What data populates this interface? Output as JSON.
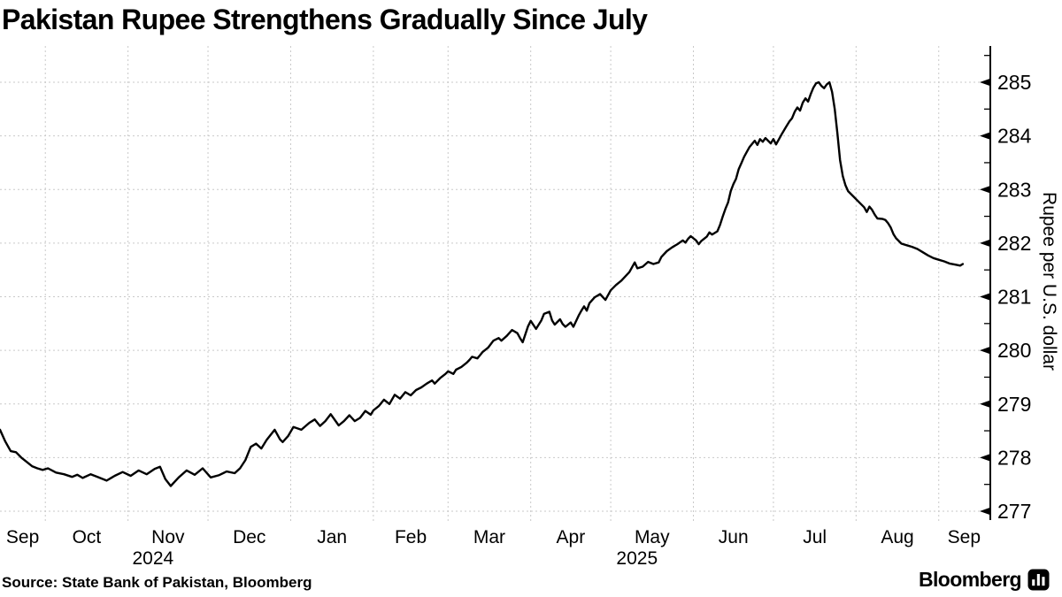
{
  "header": {
    "title": "Pakistan Rupee Strengthens Gradually Since July"
  },
  "footer": {
    "source": "Source: State Bank of Pakistan, Bloomberg",
    "brand": "Bloomberg",
    "brand_icon": "bloomberg-terminal-icon"
  },
  "colors": {
    "line": "#000000",
    "grid": "#c9c9c9",
    "background": "#ffffff",
    "text": "#000000"
  },
  "chart_data": {
    "type": "line",
    "title": "Pakistan Rupee Strengthens Gradually Since July",
    "xlabel": "",
    "ylabel": "Rupee per U.S. dollar",
    "y_ticks": [
      277,
      278,
      279,
      280,
      281,
      282,
      283,
      284,
      285
    ],
    "y_minor_step": 0.5,
    "ylim": [
      276.84,
      285.68
    ],
    "grid": "dashed",
    "legend": "none",
    "x_domain": [
      "2024-09-14",
      "2025-09-20"
    ],
    "month_start_gridlines": [
      "2024-10-01",
      "2024-11-01",
      "2024-12-01",
      "2025-01-01",
      "2025-02-01",
      "2025-03-01",
      "2025-04-01",
      "2025-05-01",
      "2025-06-01",
      "2025-07-01",
      "2025-08-01",
      "2025-09-01"
    ],
    "month_labels": [
      "Sep",
      "Oct",
      "Nov",
      "Dec",
      "Jan",
      "Feb",
      "Mar",
      "Apr",
      "May",
      "Jun",
      "Jul",
      "Aug",
      "Sep"
    ],
    "year_labels": [
      {
        "text": "2024",
        "month_index": 2
      },
      {
        "text": "2025",
        "month_index": 8
      }
    ],
    "points": [
      [
        "2024-09-14",
        278.52
      ],
      [
        "2024-09-16",
        278.3
      ],
      [
        "2024-09-18",
        278.12
      ],
      [
        "2024-09-20",
        278.1
      ],
      [
        "2024-09-22",
        278.0
      ],
      [
        "2024-09-24",
        277.92
      ],
      [
        "2024-09-26",
        277.84
      ],
      [
        "2024-09-28",
        277.8
      ],
      [
        "2024-09-30",
        277.77
      ],
      [
        "2024-10-02",
        277.8
      ],
      [
        "2024-10-05",
        277.72
      ],
      [
        "2024-10-08",
        277.69
      ],
      [
        "2024-10-11",
        277.64
      ],
      [
        "2024-10-13",
        277.68
      ],
      [
        "2024-10-15",
        277.62
      ],
      [
        "2024-10-18",
        277.69
      ],
      [
        "2024-10-21",
        277.63
      ],
      [
        "2024-10-24",
        277.57
      ],
      [
        "2024-10-27",
        277.66
      ],
      [
        "2024-10-30",
        277.73
      ],
      [
        "2024-11-02",
        277.66
      ],
      [
        "2024-11-05",
        277.76
      ],
      [
        "2024-11-08",
        277.69
      ],
      [
        "2024-11-11",
        277.79
      ],
      [
        "2024-11-13",
        277.83
      ],
      [
        "2024-11-15",
        277.6
      ],
      [
        "2024-11-17",
        277.47
      ],
      [
        "2024-11-20",
        277.63
      ],
      [
        "2024-11-23",
        277.76
      ],
      [
        "2024-11-26",
        277.68
      ],
      [
        "2024-11-29",
        277.8
      ],
      [
        "2024-12-02",
        277.63
      ],
      [
        "2024-12-05",
        277.67
      ],
      [
        "2024-12-08",
        277.74
      ],
      [
        "2024-12-11",
        277.71
      ],
      [
        "2024-12-13",
        277.8
      ],
      [
        "2024-12-15",
        277.95
      ],
      [
        "2024-12-17",
        278.2
      ],
      [
        "2024-12-19",
        278.26
      ],
      [
        "2024-12-21",
        278.17
      ],
      [
        "2024-12-23",
        278.33
      ],
      [
        "2024-12-26",
        278.52
      ],
      [
        "2024-12-28",
        278.34
      ],
      [
        "2024-12-29",
        278.29
      ],
      [
        "2024-12-31",
        278.4
      ],
      [
        "2025-01-02",
        278.57
      ],
      [
        "2025-01-05",
        278.52
      ],
      [
        "2025-01-08",
        278.65
      ],
      [
        "2025-01-10",
        278.71
      ],
      [
        "2025-01-12",
        278.59
      ],
      [
        "2025-01-14",
        278.68
      ],
      [
        "2025-01-16",
        278.81
      ],
      [
        "2025-01-19",
        278.6
      ],
      [
        "2025-01-21",
        278.68
      ],
      [
        "2025-01-23",
        278.79
      ],
      [
        "2025-01-25",
        278.68
      ],
      [
        "2025-01-27",
        278.74
      ],
      [
        "2025-01-29",
        278.87
      ],
      [
        "2025-01-31",
        278.8
      ],
      [
        "2025-02-01",
        278.88
      ],
      [
        "2025-02-03",
        278.96
      ],
      [
        "2025-02-05",
        279.08
      ],
      [
        "2025-02-07",
        279.0
      ],
      [
        "2025-02-09",
        279.17
      ],
      [
        "2025-02-11",
        279.1
      ],
      [
        "2025-02-13",
        279.22
      ],
      [
        "2025-02-15",
        279.16
      ],
      [
        "2025-02-17",
        279.26
      ],
      [
        "2025-02-19",
        279.31
      ],
      [
        "2025-02-21",
        279.38
      ],
      [
        "2025-02-23",
        279.44
      ],
      [
        "2025-02-24",
        279.38
      ],
      [
        "2025-02-26",
        279.48
      ],
      [
        "2025-02-28",
        279.56
      ],
      [
        "2025-03-01",
        279.61
      ],
      [
        "2025-03-03",
        279.56
      ],
      [
        "2025-03-04",
        279.64
      ],
      [
        "2025-03-06",
        279.69
      ],
      [
        "2025-03-08",
        279.77
      ],
      [
        "2025-03-09",
        279.82
      ],
      [
        "2025-03-10",
        279.88
      ],
      [
        "2025-03-12",
        279.85
      ],
      [
        "2025-03-13",
        279.91
      ],
      [
        "2025-03-14",
        279.97
      ],
      [
        "2025-03-16",
        280.05
      ],
      [
        "2025-03-18",
        280.18
      ],
      [
        "2025-03-20",
        280.23
      ],
      [
        "2025-03-21",
        280.18
      ],
      [
        "2025-03-23",
        280.27
      ],
      [
        "2025-03-25",
        280.38
      ],
      [
        "2025-03-27",
        280.32
      ],
      [
        "2025-03-28",
        280.23
      ],
      [
        "2025-03-29",
        280.15
      ],
      [
        "2025-03-31",
        280.45
      ],
      [
        "2025-04-01",
        280.55
      ],
      [
        "2025-04-03",
        280.4
      ],
      [
        "2025-04-05",
        280.56
      ],
      [
        "2025-04-06",
        280.68
      ],
      [
        "2025-04-08",
        280.72
      ],
      [
        "2025-04-09",
        280.56
      ],
      [
        "2025-04-10",
        280.48
      ],
      [
        "2025-04-12",
        280.58
      ],
      [
        "2025-04-13",
        280.49
      ],
      [
        "2025-04-14",
        280.44
      ],
      [
        "2025-04-16",
        280.52
      ],
      [
        "2025-04-17",
        280.44
      ],
      [
        "2025-04-19",
        280.65
      ],
      [
        "2025-04-20",
        280.74
      ],
      [
        "2025-04-21",
        280.82
      ],
      [
        "2025-04-22",
        280.74
      ],
      [
        "2025-04-23",
        280.88
      ],
      [
        "2025-04-25",
        280.99
      ],
      [
        "2025-04-27",
        281.05
      ],
      [
        "2025-04-29",
        280.94
      ],
      [
        "2025-05-01",
        281.12
      ],
      [
        "2025-05-03",
        281.22
      ],
      [
        "2025-05-05",
        281.3
      ],
      [
        "2025-05-08",
        281.46
      ],
      [
        "2025-05-10",
        281.64
      ],
      [
        "2025-05-11",
        281.53
      ],
      [
        "2025-05-13",
        281.56
      ],
      [
        "2025-05-15",
        281.65
      ],
      [
        "2025-05-17",
        281.61
      ],
      [
        "2025-05-19",
        281.64
      ],
      [
        "2025-05-20",
        281.74
      ],
      [
        "2025-05-22",
        281.85
      ],
      [
        "2025-05-24",
        281.92
      ],
      [
        "2025-05-26",
        281.98
      ],
      [
        "2025-05-28",
        282.05
      ],
      [
        "2025-05-29",
        282.01
      ],
      [
        "2025-05-30",
        282.08
      ],
      [
        "2025-05-31",
        282.13
      ],
      [
        "2025-06-02",
        282.05
      ],
      [
        "2025-06-03",
        281.98
      ],
      [
        "2025-06-04",
        282.04
      ],
      [
        "2025-06-06",
        282.12
      ],
      [
        "2025-06-07",
        282.2
      ],
      [
        "2025-06-08",
        282.16
      ],
      [
        "2025-06-09",
        282.19
      ],
      [
        "2025-06-10",
        282.22
      ],
      [
        "2025-06-11",
        282.34
      ],
      [
        "2025-06-12",
        282.5
      ],
      [
        "2025-06-13",
        282.64
      ],
      [
        "2025-06-14",
        282.76
      ],
      [
        "2025-06-15",
        282.97
      ],
      [
        "2025-06-16",
        283.1
      ],
      [
        "2025-06-17",
        283.2
      ],
      [
        "2025-06-18",
        283.38
      ],
      [
        "2025-06-19",
        283.49
      ],
      [
        "2025-06-20",
        283.61
      ],
      [
        "2025-06-21",
        283.7
      ],
      [
        "2025-06-22",
        283.79
      ],
      [
        "2025-06-23",
        283.85
      ],
      [
        "2025-06-24",
        283.91
      ],
      [
        "2025-06-25",
        283.83
      ],
      [
        "2025-06-26",
        283.94
      ],
      [
        "2025-06-27",
        283.89
      ],
      [
        "2025-06-28",
        283.96
      ],
      [
        "2025-06-30",
        283.86
      ],
      [
        "2025-07-01",
        283.94
      ],
      [
        "2025-07-02",
        283.84
      ],
      [
        "2025-07-04",
        284.02
      ],
      [
        "2025-07-06",
        284.19
      ],
      [
        "2025-07-07",
        284.27
      ],
      [
        "2025-07-08",
        284.33
      ],
      [
        "2025-07-09",
        284.45
      ],
      [
        "2025-07-10",
        284.53
      ],
      [
        "2025-07-11",
        284.47
      ],
      [
        "2025-07-12",
        284.62
      ],
      [
        "2025-07-13",
        284.7
      ],
      [
        "2025-07-14",
        284.64
      ],
      [
        "2025-07-15",
        284.78
      ],
      [
        "2025-07-16",
        284.9
      ],
      [
        "2025-07-17",
        284.98
      ],
      [
        "2025-07-18",
        285.0
      ],
      [
        "2025-07-19",
        284.93
      ],
      [
        "2025-07-20",
        284.89
      ],
      [
        "2025-07-21",
        284.96
      ],
      [
        "2025-07-22",
        285.0
      ],
      [
        "2025-07-23",
        284.82
      ],
      [
        "2025-07-24",
        284.5
      ],
      [
        "2025-07-25",
        284.05
      ],
      [
        "2025-07-26",
        283.55
      ],
      [
        "2025-07-27",
        283.25
      ],
      [
        "2025-07-28",
        283.08
      ],
      [
        "2025-07-29",
        282.97
      ],
      [
        "2025-07-30",
        282.92
      ],
      [
        "2025-07-31",
        282.87
      ],
      [
        "2025-08-01",
        282.82
      ],
      [
        "2025-08-02",
        282.77
      ],
      [
        "2025-08-04",
        282.67
      ],
      [
        "2025-08-05",
        282.58
      ],
      [
        "2025-08-06",
        282.68
      ],
      [
        "2025-08-07",
        282.62
      ],
      [
        "2025-08-08",
        282.53
      ],
      [
        "2025-08-09",
        282.46
      ],
      [
        "2025-08-11",
        282.45
      ],
      [
        "2025-08-12",
        282.43
      ],
      [
        "2025-08-13",
        282.37
      ],
      [
        "2025-08-14",
        282.29
      ],
      [
        "2025-08-15",
        282.17
      ],
      [
        "2025-08-16",
        282.09
      ],
      [
        "2025-08-17",
        282.04
      ],
      [
        "2025-08-18",
        281.99
      ],
      [
        "2025-08-20",
        281.96
      ],
      [
        "2025-08-22",
        281.93
      ],
      [
        "2025-08-24",
        281.89
      ],
      [
        "2025-08-26",
        281.83
      ],
      [
        "2025-08-28",
        281.77
      ],
      [
        "2025-08-30",
        281.72
      ],
      [
        "2025-09-01",
        281.69
      ],
      [
        "2025-09-03",
        281.66
      ],
      [
        "2025-09-05",
        281.62
      ],
      [
        "2025-09-07",
        281.6
      ],
      [
        "2025-09-09",
        281.58
      ],
      [
        "2025-09-10",
        281.61
      ]
    ]
  }
}
